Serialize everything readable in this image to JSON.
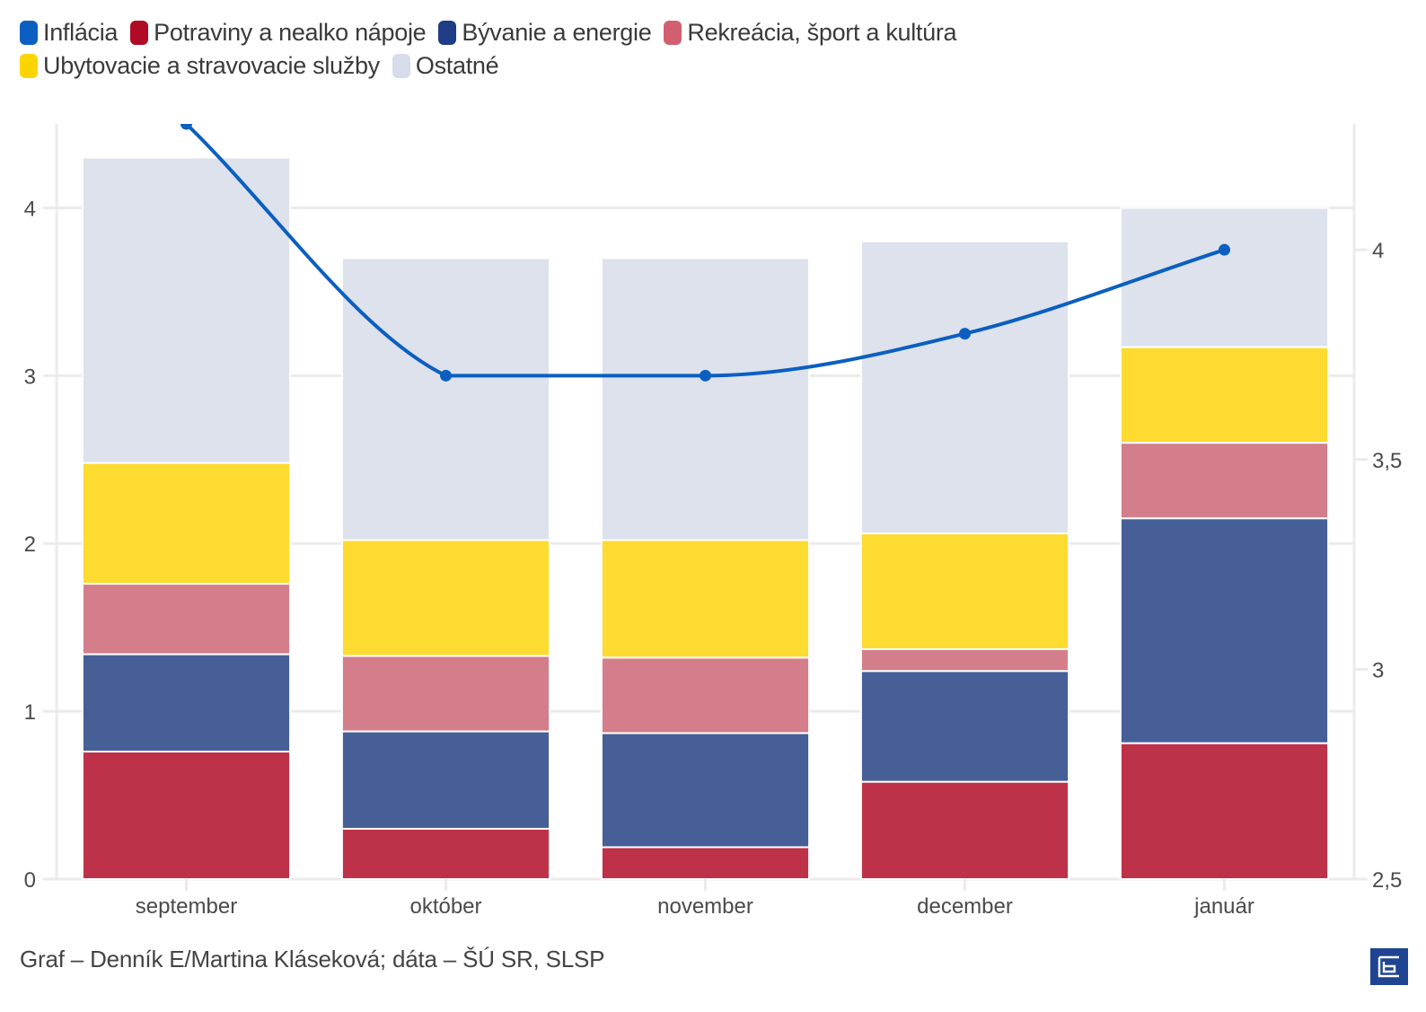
{
  "legend": {
    "row1": [
      {
        "label": "Inflácia",
        "color": "#0b5fc0"
      },
      {
        "label": "Potraviny a nealko nápoje",
        "color": "#b00a25"
      },
      {
        "label": "Bývanie a energie",
        "color": "#1f3d86"
      },
      {
        "label": "Rekreácia, šport a kultúra",
        "color": "#d06070"
      }
    ],
    "row2": [
      {
        "label": "Ubytovacie a stravovacie služby",
        "color": "#fcd400"
      },
      {
        "label": "Ostatné",
        "color": "#d6dcea"
      }
    ]
  },
  "footer": {
    "credit": "Graf – Denník E/Martina Kláseková; dáta – ŠÚ SR, SLSP",
    "logo_icon": "dennik-e-logo-icon"
  },
  "chart_data": {
    "type": "bar",
    "stacked": true,
    "categories": [
      "september",
      "október",
      "november",
      "december",
      "január"
    ],
    "series": [
      {
        "name": "Potraviny a nealko nápoje",
        "color": "#be3249",
        "values": [
          0.76,
          0.3,
          0.19,
          0.58,
          0.81
        ]
      },
      {
        "name": "Bývanie a energie",
        "color": "#465f97",
        "values": [
          0.58,
          0.58,
          0.68,
          0.66,
          1.34
        ]
      },
      {
        "name": "Rekreácia, šport a kultúra",
        "color": "#d37e8a",
        "values": [
          0.42,
          0.45,
          0.45,
          0.13,
          0.45
        ]
      },
      {
        "name": "Ubytovacie a stravovacie služby",
        "color": "#fddb31",
        "values": [
          0.72,
          0.69,
          0.7,
          0.69,
          0.57
        ]
      },
      {
        "name": "Ostatné",
        "color": "#dde2ed",
        "values": [
          1.82,
          1.68,
          1.68,
          1.74,
          0.83
        ]
      }
    ],
    "line_series": {
      "name": "Inflácia",
      "color": "#0b5fc0",
      "axis": "right",
      "values": [
        4.3,
        3.7,
        3.7,
        3.8,
        4.0
      ]
    },
    "y_left": {
      "ylim": [
        0,
        4.5
      ],
      "ticks": [
        0,
        1,
        2,
        3,
        4
      ],
      "tick_labels": [
        "0",
        "1",
        "2",
        "3",
        "4"
      ]
    },
    "y_right": {
      "ylim": [
        2.5,
        4.3
      ],
      "ticks": [
        2.5,
        3,
        3.5,
        4
      ],
      "tick_labels": [
        "2,5",
        "3",
        "3,5",
        "4"
      ]
    },
    "title": "",
    "xlabel": "",
    "ylabel": "",
    "grid": true,
    "legend_position": "top-left"
  }
}
